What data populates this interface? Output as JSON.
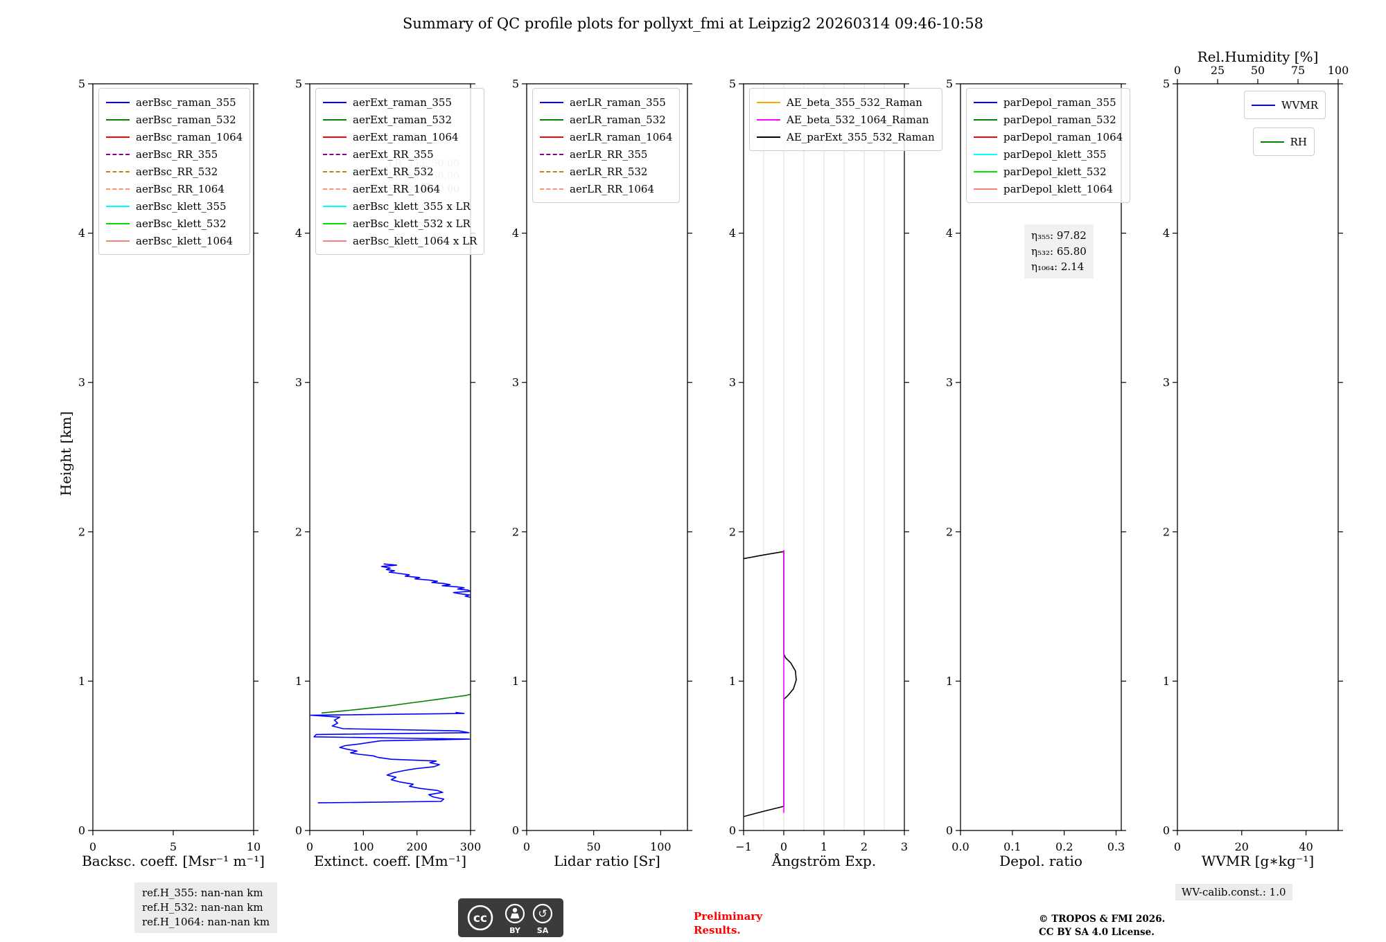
{
  "title": "Summary of QC profile plots for pollyxt_fmi at Leipzig2 20260314 09:46-10:58",
  "y_axis": {
    "label": "Height [km]",
    "lim": [
      0,
      5
    ]
  },
  "chart_data": [
    {
      "id": "backscatter",
      "type": "line",
      "xlabel": "Backsc. coeff. [Msr⁻¹ m⁻¹]",
      "xlim": [
        0,
        10
      ],
      "ylim": [
        0,
        5
      ],
      "xticks": {
        "values": [
          0,
          5,
          10
        ],
        "labels": [
          "0",
          "5",
          "10"
        ]
      },
      "yticks": {
        "values": [
          0,
          1,
          2,
          3,
          4,
          5
        ],
        "labels": [
          "0",
          "1",
          "2",
          "3",
          "4",
          "5"
        ]
      },
      "legend_pos": "upper-left",
      "legends": [
        [
          {
            "label": "aerBsc_raman_355",
            "color": "#0000ff",
            "style": "solid"
          },
          {
            "label": "aerBsc_raman_532",
            "color": "#007f00",
            "style": "solid"
          },
          {
            "label": "aerBsc_raman_1064",
            "color": "#ff0000",
            "style": "solid"
          },
          {
            "label": "aerBsc_RR_355",
            "color": "#8b008b",
            "style": "dashed"
          },
          {
            "label": "aerBsc_RR_532",
            "color": "#b8860b",
            "style": "dashed"
          },
          {
            "label": "aerBsc_RR_1064",
            "color": "#ff9070",
            "style": "dashed"
          },
          {
            "label": "aerBsc_klett_355",
            "color": "#00ffff",
            "style": "solid"
          },
          {
            "label": "aerBsc_klett_532",
            "color": "#00dd00",
            "style": "solid"
          },
          {
            "label": "aerBsc_klett_1064",
            "color": "#fa8072",
            "style": "solid"
          }
        ]
      ],
      "series": []
    },
    {
      "id": "extinction",
      "type": "line",
      "xlabel": "Extinct. coeff. [Mm⁻¹]",
      "xlim": [
        0,
        300
      ],
      "ylim": [
        0,
        5
      ],
      "xticks": {
        "values": [
          0,
          100,
          200,
          300
        ],
        "labels": [
          "0",
          "100",
          "200",
          "300"
        ]
      },
      "yticks": {
        "values": [
          0,
          1,
          2,
          3,
          4,
          5
        ],
        "labels": [
          "0",
          "1",
          "2",
          "3",
          "4",
          "5"
        ]
      },
      "legend_pos": "upper-left",
      "legends": [
        [
          {
            "label": "aerExt_raman_355",
            "color": "#0000ff",
            "style": "solid"
          },
          {
            "label": "aerExt_raman_532",
            "color": "#007f00",
            "style": "solid"
          },
          {
            "label": "aerExt_raman_1064",
            "color": "#ff0000",
            "style": "solid"
          },
          {
            "label": "aerExt_RR_355",
            "color": "#8b008b",
            "style": "dashed"
          },
          {
            "label": "aerExt_RR_532",
            "color": "#b8860b",
            "style": "dashed"
          },
          {
            "label": "aerExt_RR_1064",
            "color": "#ff9070",
            "style": "dashed"
          },
          {
            "label": "aerBsc_klett_355 x LR",
            "color": "#00ffff",
            "style": "solid"
          },
          {
            "label": "aerBsc_klett_532 x LR",
            "color": "#00dd00",
            "style": "solid"
          },
          {
            "label": "aerBsc_klett_1064 x LR",
            "color": "#fa8072",
            "style": "solid"
          }
        ]
      ],
      "annotations": [
        {
          "text": "LR_355: 50.00",
          "xf": 0.93,
          "yf": 0.111,
          "color": "#aaaaaa",
          "anchor": "end",
          "size": 14
        },
        {
          "text": "LR_532: 50.00",
          "xf": 0.93,
          "yf": 0.128,
          "color": "#aaaaaa",
          "anchor": "end",
          "size": 14
        },
        {
          "text": "LR_1064: 50.00",
          "xf": 0.93,
          "yf": 0.145,
          "color": "#aaaaaa",
          "anchor": "end",
          "size": 14
        }
      ],
      "series": [
        {
          "name": "aerExt_raman_355",
          "color": "#0000ff",
          "style": "solid",
          "points": [
            [
              15,
              0.185
            ],
            [
              245,
              0.195
            ],
            [
              250,
              0.21
            ],
            [
              230,
              0.225
            ],
            [
              222,
              0.24
            ],
            [
              248,
              0.255
            ],
            [
              238,
              0.268
            ],
            [
              205,
              0.282
            ],
            [
              186,
              0.296
            ],
            [
              193,
              0.31
            ],
            [
              168,
              0.325
            ],
            [
              152,
              0.34
            ],
            [
              161,
              0.356
            ],
            [
              144,
              0.371
            ],
            [
              156,
              0.387
            ],
            [
              176,
              0.401
            ],
            [
              198,
              0.414
            ],
            [
              232,
              0.427
            ],
            [
              242,
              0.441
            ],
            [
              224,
              0.454
            ],
            [
              236,
              0.465
            ],
            [
              152,
              0.477
            ],
            [
              128,
              0.489
            ],
            [
              118,
              0.5
            ],
            [
              92,
              0.51
            ],
            [
              76,
              0.52
            ],
            [
              88,
              0.532
            ],
            [
              70,
              0.544
            ],
            [
              56,
              0.556
            ],
            [
              66,
              0.568
            ],
            [
              92,
              0.579
            ],
            [
              112,
              0.59
            ],
            [
              132,
              0.6
            ],
            [
              298,
              0.612
            ],
            [
              8,
              0.627
            ],
            [
              12,
              0.643
            ],
            [
              297,
              0.655
            ],
            [
              278,
              0.667
            ],
            [
              62,
              0.682
            ],
            [
              42,
              0.7
            ],
            [
              52,
              0.719
            ],
            [
              46,
              0.739
            ],
            [
              56,
              0.759
            ],
            [
              2,
              0.772
            ],
            [
              288,
              0.784
            ],
            [
              272,
              0.791
            ]
          ]
        },
        {
          "name": "aerExt_raman_355",
          "color": "#0000ff",
          "style": "solid",
          "points": [
            [
              138,
              1.785
            ],
            [
              162,
              1.777
            ],
            [
              134,
              1.768
            ],
            [
              150,
              1.757
            ],
            [
              143,
              1.747
            ],
            [
              158,
              1.739
            ],
            [
              148,
              1.73
            ],
            [
              168,
              1.721
            ],
            [
              186,
              1.712
            ],
            [
              178,
              1.703
            ],
            [
              205,
              1.694
            ],
            [
              196,
              1.685
            ],
            [
              222,
              1.677
            ],
            [
              238,
              1.669
            ],
            [
              228,
              1.661
            ],
            [
              252,
              1.653
            ],
            [
              262,
              1.646
            ],
            [
              247,
              1.639
            ],
            [
              272,
              1.632
            ],
            [
              288,
              1.625
            ],
            [
              276,
              1.617
            ],
            [
              295,
              1.61
            ],
            [
              300,
              1.602
            ],
            [
              268,
              1.593
            ],
            [
              281,
              1.585
            ],
            [
              298,
              1.577
            ],
            [
              290,
              1.569
            ],
            [
              300,
              1.561
            ]
          ]
        },
        {
          "name": "aerExt_raman_532",
          "color": "#007f00",
          "style": "solid",
          "points": [
            [
              22,
              0.787
            ],
            [
              58,
              0.799
            ],
            [
              92,
              0.811
            ],
            [
              124,
              0.824
            ],
            [
              154,
              0.837
            ],
            [
              182,
              0.851
            ],
            [
              212,
              0.865
            ],
            [
              242,
              0.88
            ],
            [
              268,
              0.893
            ],
            [
              292,
              0.905
            ],
            [
              300,
              0.912
            ]
          ]
        }
      ]
    },
    {
      "id": "lidar-ratio",
      "type": "line",
      "xlabel": "Lidar ratio [Sr]",
      "xlim": [
        0,
        120
      ],
      "ylim": [
        0,
        5
      ],
      "xticks": {
        "values": [
          0,
          50,
          100
        ],
        "labels": [
          "0",
          "50",
          "100"
        ]
      },
      "yticks": {
        "values": [
          0,
          1,
          2,
          3,
          4,
          5
        ],
        "labels": [
          "0",
          "1",
          "2",
          "3",
          "4",
          "5"
        ]
      },
      "legend_pos": "upper-left",
      "legends": [
        [
          {
            "label": "aerLR_raman_355",
            "color": "#0000ff",
            "style": "solid"
          },
          {
            "label": "aerLR_raman_532",
            "color": "#007f00",
            "style": "solid"
          },
          {
            "label": "aerLR_raman_1064",
            "color": "#ff0000",
            "style": "solid"
          },
          {
            "label": "aerLR_RR_355",
            "color": "#8b008b",
            "style": "dashed"
          },
          {
            "label": "aerLR_RR_532",
            "color": "#b8860b",
            "style": "dashed"
          },
          {
            "label": "aerLR_RR_1064",
            "color": "#ff9070",
            "style": "dashed"
          }
        ]
      ],
      "series": []
    },
    {
      "id": "angstrom",
      "type": "line",
      "xlabel": "Ångström Exp.",
      "xlim": [
        -1,
        3
      ],
      "ylim": [
        0,
        5
      ],
      "xticks": {
        "values": [
          -1,
          0,
          1,
          2,
          3
        ],
        "labels": [
          "−1",
          "0",
          "1",
          "2",
          "3"
        ]
      },
      "yticks": {
        "values": [
          0,
          1,
          2,
          3,
          4,
          5
        ],
        "labels": [
          "0",
          "1",
          "2",
          "3",
          "4",
          "5"
        ]
      },
      "grid_x": [
        -0.5,
        0,
        0.5,
        1,
        1.5,
        2,
        2.5
      ],
      "legend_pos": "upper-left",
      "legends": [
        [
          {
            "label": "AE_beta_355_532_Raman",
            "color": "#ffa500",
            "style": "solid"
          },
          {
            "label": "AE_beta_532_1064_Raman",
            "color": "#ff00ff",
            "style": "solid"
          },
          {
            "label": "AE_parExt_355_532_Raman",
            "color": "#000000",
            "style": "solid"
          }
        ]
      ],
      "series": [
        {
          "name": "AE_parExt_355_532_Raman",
          "color": "#000000",
          "style": "solid",
          "points": [
            [
              -1.0,
              0.093
            ],
            [
              -0.55,
              0.125
            ],
            [
              0,
              0.162
            ],
            [
              0,
              0.878
            ],
            [
              0.1,
              0.903
            ],
            [
              0.24,
              0.948
            ],
            [
              0.31,
              1.008
            ],
            [
              0.29,
              1.068
            ],
            [
              0.17,
              1.123
            ],
            [
              0.04,
              1.158
            ],
            [
              0,
              1.183
            ],
            [
              0,
              1.868
            ],
            [
              -0.5,
              1.845
            ],
            [
              -1.0,
              1.82
            ]
          ]
        },
        {
          "name": "AE_beta_532_1064_Raman",
          "color": "#ff00ff",
          "style": "solid",
          "points": [
            [
              0,
              0.118
            ],
            [
              0,
              1.878
            ]
          ]
        }
      ]
    },
    {
      "id": "depol",
      "type": "line",
      "xlabel": "Depol. ratio",
      "xlim": [
        0,
        0.31
      ],
      "ylim": [
        0,
        5
      ],
      "xticks": {
        "values": [
          0,
          0.1,
          0.2,
          0.3
        ],
        "labels": [
          "0.0",
          "0.1",
          "0.2",
          "0.3"
        ]
      },
      "yticks": {
        "values": [
          0,
          1,
          2,
          3,
          4,
          5
        ],
        "labels": [
          "0",
          "1",
          "2",
          "3",
          "4",
          "5"
        ]
      },
      "legend_pos": "upper-left",
      "legends": [
        [
          {
            "label": "parDepol_raman_355",
            "color": "#0000ff",
            "style": "solid"
          },
          {
            "label": "parDepol_raman_532",
            "color": "#007f00",
            "style": "solid"
          },
          {
            "label": "parDepol_raman_1064",
            "color": "#ff0000",
            "style": "solid"
          },
          {
            "label": "parDepol_klett_355",
            "color": "#00ffff",
            "style": "solid"
          },
          {
            "label": "parDepol_klett_532",
            "color": "#00dd00",
            "style": "solid"
          },
          {
            "label": "parDepol_klett_1064",
            "color": "#fa8072",
            "style": "solid"
          }
        ]
      ],
      "annotation_box": {
        "lines": [
          "η₃₅₅: 97.82",
          "η₅₃₂: 65.80",
          "η₁₀₆₄: 2.14"
        ]
      },
      "series": []
    },
    {
      "id": "wvmr",
      "type": "line",
      "xlabel": "WVMR [g∗kg⁻¹]",
      "xlim": [
        0,
        50
      ],
      "ylim": [
        0,
        5
      ],
      "xticks": {
        "values": [
          0,
          20,
          40
        ],
        "labels": [
          "0",
          "20",
          "40"
        ]
      },
      "yticks": {
        "values": [
          0,
          1,
          2,
          3,
          4,
          5
        ],
        "labels": [
          "0",
          "1",
          "2",
          "3",
          "4",
          "5"
        ]
      },
      "top_axis": {
        "label": "Rel.Humidity [%]",
        "lim": [
          0,
          100
        ],
        "ticks": {
          "values": [
            0,
            25,
            50,
            75,
            100
          ],
          "labels": [
            "0",
            "25",
            "50",
            "75",
            "100"
          ]
        }
      },
      "legend_pos": "upper-right",
      "legends": [
        [
          {
            "label": "WVMR",
            "color": "#0000ff",
            "style": "solid"
          }
        ],
        [
          {
            "label": "RH",
            "color": "#007f00",
            "style": "solid"
          }
        ]
      ],
      "series": []
    }
  ],
  "footer": {
    "ref_heights": [
      "ref.H_355: nan-nan km",
      "ref.H_532: nan-nan km",
      "ref.H_1064: nan-nan km"
    ],
    "license_badge": {
      "cc": "cc",
      "by": "BY",
      "sa": "SA"
    },
    "preliminary": [
      "Preliminary",
      "Results."
    ],
    "copyright": [
      "© TROPOS & FMI 2026.",
      "CC BY SA 4.0 License."
    ],
    "wv_calib": "WV-calib.const.: 1.0"
  }
}
